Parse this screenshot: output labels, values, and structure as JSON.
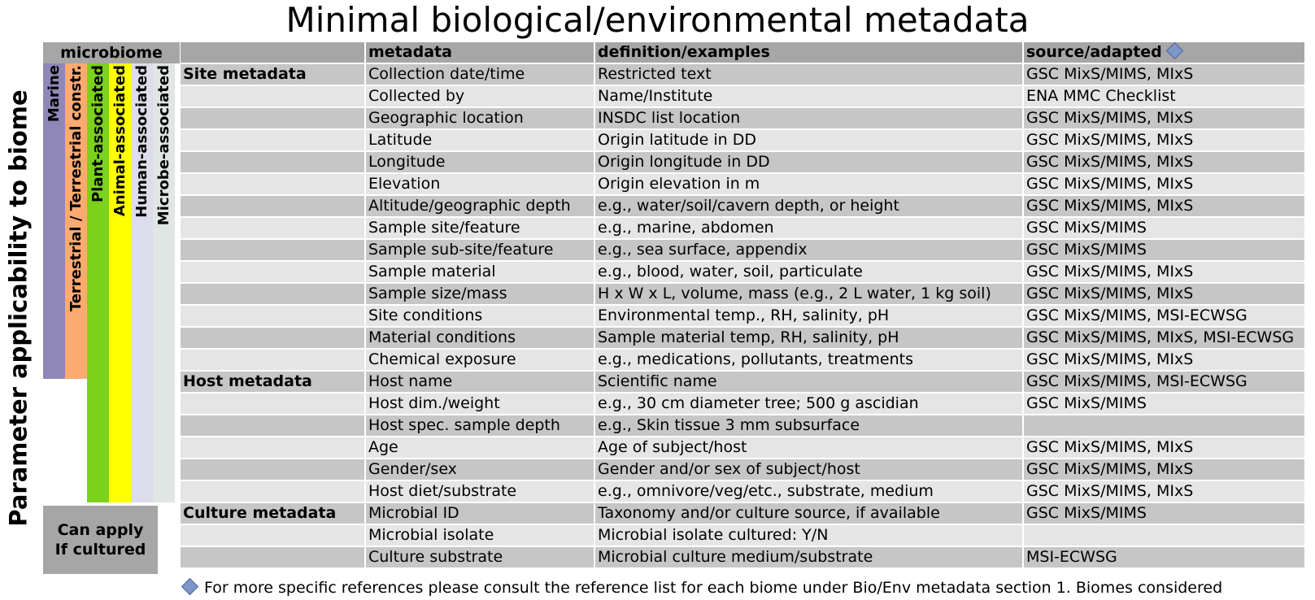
{
  "title": "Minimal biological/environmental metadata",
  "side_label": "Parameter applicability to biome",
  "biome_header": "microbiome",
  "biomes": [
    {
      "label": "Marine",
      "color": "#8f87b6"
    },
    {
      "label": "Terrestrial / Terrestrial constr.",
      "color": "#fbab70"
    },
    {
      "label": "Plant-associated",
      "color": "#7bd11b"
    },
    {
      "label": "Animal-associated",
      "color": "#ffff00"
    },
    {
      "label": "Human-associated",
      "color": "#dcdcea"
    },
    {
      "label": "Microbe-associated",
      "color": "#dfe6e4"
    }
  ],
  "culture_box": {
    "line1": "Can apply",
    "line2": "If cultured"
  },
  "columns": {
    "metadata": "metadata",
    "definition": "definition/examples",
    "source": "source/adapted"
  },
  "rows": [
    {
      "group": "Site metadata",
      "metadata": "Collection date/time",
      "definition": "Restricted text",
      "source": "GSC MixS/MIMS, MIxS"
    },
    {
      "group": "",
      "metadata": "Collected by",
      "definition": "Name/Institute",
      "source": "ENA MMC Checklist"
    },
    {
      "group": "",
      "metadata": "Geographic location",
      "definition": "INSDC list location",
      "source": "GSC MixS/MIMS, MIxS"
    },
    {
      "group": "",
      "metadata": "Latitude",
      "definition": "Origin latitude in DD",
      "source": "GSC MixS/MIMS, MIxS"
    },
    {
      "group": "",
      "metadata": "Longitude",
      "definition": "Origin longitude in DD",
      "source": "GSC MixS/MIMS, MIxS"
    },
    {
      "group": "",
      "metadata": "Elevation",
      "definition": "Origin elevation in m",
      "source": "GSC MixS/MIMS, MIxS"
    },
    {
      "group": "",
      "metadata": "Altitude/geographic depth",
      "definition": "e.g., water/soil/cavern depth, or height",
      "source": "GSC MixS/MIMS, MIxS"
    },
    {
      "group": "",
      "metadata": "Sample site/feature",
      "definition": "e.g., marine, abdomen",
      "source": "GSC MixS/MIMS"
    },
    {
      "group": "",
      "metadata": "Sample sub-site/feature",
      "definition": "e.g., sea surface, appendix",
      "source": "GSC MixS/MIMS"
    },
    {
      "group": "",
      "metadata": "Sample material",
      "definition": "e.g., blood, water, soil, particulate",
      "source": "GSC MixS/MIMS, MIxS"
    },
    {
      "group": "",
      "metadata": "Sample size/mass",
      "definition": "H x W x L, volume, mass (e.g., 2 L water, 1 kg soil)",
      "source": "GSC MixS/MIMS, MIxS"
    },
    {
      "group": "",
      "metadata": "Site conditions",
      "definition": "Environmental temp., RH, salinity, pH",
      "source": "GSC MixS/MIMS, MSI-ECWSG"
    },
    {
      "group": "",
      "metadata": "Material conditions",
      "definition": "Sample material temp, RH, salinity, pH",
      "source": "GSC MixS/MIMS, MIxS, MSI-ECWSG"
    },
    {
      "group": "",
      "metadata": "Chemical exposure",
      "definition": "e.g., medications, pollutants, treatments",
      "source": "GSC MixS/MIMS, MIxS"
    },
    {
      "group": "Host metadata",
      "metadata": "Host name",
      "definition": "Scientific name",
      "source": "GSC MixS/MIMS, MSI-ECWSG"
    },
    {
      "group": "",
      "metadata": "Host dim./weight",
      "definition": "e.g., 30 cm diameter tree; 500 g ascidian",
      "source": "GSC MixS/MIMS"
    },
    {
      "group": "",
      "metadata": "Host spec. sample depth",
      "definition": "e.g., Skin tissue 3 mm subsurface",
      "source": ""
    },
    {
      "group": "",
      "metadata": "Age",
      "definition": "Age of subject/host",
      "source": "GSC MixS/MIMS, MIxS"
    },
    {
      "group": "",
      "metadata": "Gender/sex",
      "definition": "Gender and/or sex of subject/host",
      "source": "GSC MixS/MIMS, MIxS"
    },
    {
      "group": "",
      "metadata": "Host diet/substrate",
      "definition": "e.g., omnivore/veg/etc., substrate, medium",
      "source": "GSC MixS/MIMS, MIxS"
    },
    {
      "group": "Culture metadata",
      "metadata": "Microbial ID",
      "definition": "Taxonomy and/or culture source, if available",
      "source": "GSC MixS/MIMS"
    },
    {
      "group": "",
      "metadata": "Microbial isolate",
      "definition": "Microbial isolate cultured: Y/N",
      "source": ""
    },
    {
      "group": "",
      "metadata": "Culture substrate",
      "definition": "Microbial culture medium/substrate",
      "source": "MSI-ECWSG"
    }
  ],
  "footnote": "For more specific references please consult the reference list for each biome under Bio/Env metadata section 1. Biomes considered"
}
